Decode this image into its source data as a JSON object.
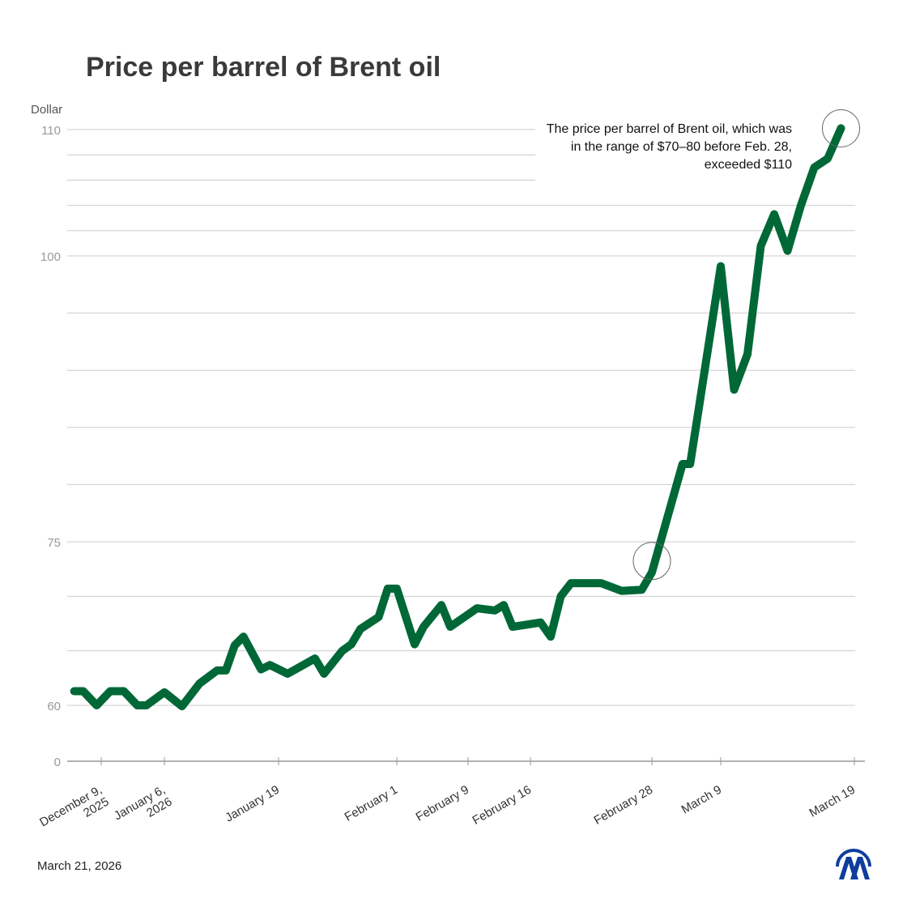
{
  "chart_data": {
    "type": "line",
    "title": "Price per barrel of Brent oil",
    "ylabel": "Dollar",
    "xlabel": "",
    "y_tick_labels": [
      0,
      60,
      75,
      100,
      110
    ],
    "y_gridlines": [
      60,
      65,
      70,
      75,
      80,
      85,
      90,
      95,
      100,
      102,
      104,
      106,
      108,
      110
    ],
    "ylim": [
      0,
      110
    ],
    "grid": true,
    "x_ticks": [
      {
        "date": "2025-12-09",
        "label": [
          "December 9,",
          "2025"
        ]
      },
      {
        "date": "2026-01-06",
        "label": [
          "January 6,",
          "2026"
        ]
      },
      {
        "date": "2026-01-19",
        "label": [
          "January 19"
        ]
      },
      {
        "date": "2026-02-01",
        "label": [
          "February 1"
        ]
      },
      {
        "date": "2026-02-09",
        "label": [
          "February 9"
        ]
      },
      {
        "date": "2026-02-16",
        "label": [
          "February 16"
        ]
      },
      {
        "date": "2026-02-28",
        "label": [
          "February 28"
        ]
      },
      {
        "date": "2026-03-09",
        "label": [
          "March 9"
        ]
      },
      {
        "date": "2026-03-19",
        "label": [
          "March 19"
        ]
      }
    ],
    "series": [
      {
        "color": "#006837",
        "points": [
          [
            "2025-11-27",
            61.3
          ],
          [
            "2025-12-01",
            61.3
          ],
          [
            "2025-12-07",
            60.0
          ],
          [
            "2025-12-13",
            61.3
          ],
          [
            "2025-12-19",
            61.3
          ],
          [
            "2025-12-25",
            60.0
          ],
          [
            "2025-12-29",
            60.0
          ],
          [
            "2026-01-06",
            61.2
          ],
          [
            "2026-01-08",
            59.0
          ],
          [
            "2026-01-10",
            62.0
          ],
          [
            "2026-01-12",
            63.2
          ],
          [
            "2026-01-13",
            63.2
          ],
          [
            "2026-01-14",
            65.5
          ],
          [
            "2026-01-15",
            66.3
          ],
          [
            "2026-01-17",
            63.3
          ],
          [
            "2026-01-18",
            63.7
          ],
          [
            "2026-01-20",
            62.9
          ],
          [
            "2026-01-23",
            64.3
          ],
          [
            "2026-01-24",
            62.9
          ],
          [
            "2026-01-26",
            65.0
          ],
          [
            "2026-01-27",
            65.6
          ],
          [
            "2026-01-28",
            67.0
          ],
          [
            "2026-01-30",
            68.1
          ],
          [
            "2026-01-31",
            70.7
          ],
          [
            "2026-02-01",
            70.7
          ],
          [
            "2026-02-03",
            65.6
          ],
          [
            "2026-02-04",
            67.2
          ],
          [
            "2026-02-06",
            69.2
          ],
          [
            "2026-02-07",
            67.2
          ],
          [
            "2026-02-10",
            68.9
          ],
          [
            "2026-02-12",
            68.7
          ],
          [
            "2026-02-13",
            69.2
          ],
          [
            "2026-02-14",
            67.2
          ],
          [
            "2026-02-17",
            67.6
          ],
          [
            "2026-02-18",
            66.3
          ],
          [
            "2026-02-19",
            70.0
          ],
          [
            "2026-02-20",
            71.2
          ],
          [
            "2026-02-23",
            71.2
          ],
          [
            "2026-02-25",
            70.5
          ],
          [
            "2026-02-27",
            70.6
          ],
          [
            "2026-02-28",
            72.2
          ],
          [
            "2026-03-04",
            81.8
          ],
          [
            "2026-03-05",
            81.8
          ],
          [
            "2026-03-06",
            86.1
          ],
          [
            "2026-03-09",
            99.1
          ],
          [
            "2026-03-10",
            88.3
          ],
          [
            "2026-03-11",
            91.4
          ],
          [
            "2026-03-12",
            100.8
          ],
          [
            "2026-03-13",
            103.3
          ],
          [
            "2026-03-14",
            100.4
          ],
          [
            "2026-03-15",
            104.0
          ],
          [
            "2026-03-16",
            107.0
          ],
          [
            "2026-03-17",
            107.7
          ],
          [
            "2026-03-18",
            110.1
          ]
        ]
      }
    ],
    "highlighted_points": [
      "2026-02-28",
      "2026-03-18"
    ],
    "annotation": "The price per barrel of Brent oil, which was in the range of $70–80 before Feb. 28, exceeded $110"
  },
  "footer": {
    "date": "March 21, 2026",
    "logo": "AA",
    "logo_color": "#0f3d9e"
  },
  "colors": {
    "line": "#006837",
    "grid": "#cccccc",
    "axis_label": "#999999"
  }
}
